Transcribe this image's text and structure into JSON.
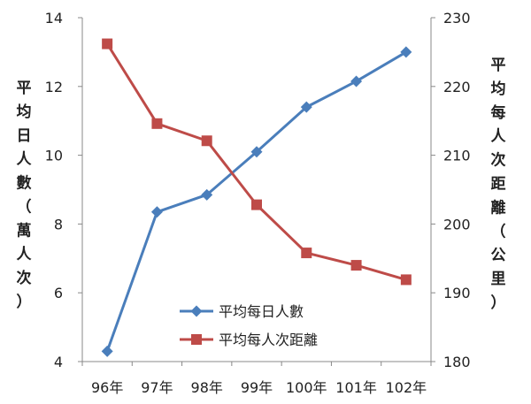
{
  "chart_data": {
    "type": "line",
    "categories": [
      "96年",
      "97年",
      "98年",
      "99年",
      "100年",
      "101年",
      "102年"
    ],
    "series": [
      {
        "name": "平均每日人數",
        "axis": "left",
        "color": "#4a7ebb",
        "marker": "diamond",
        "values": [
          4.3,
          8.35,
          8.85,
          10.1,
          11.4,
          12.15,
          13.0
        ]
      },
      {
        "name": "平均每人次距離",
        "axis": "right",
        "color": "#be4b48",
        "marker": "square",
        "values": [
          226.2,
          214.6,
          212.1,
          202.8,
          195.8,
          194.0,
          191.9
        ]
      }
    ],
    "y_left": {
      "label": "平均日人數（萬人次）",
      "ylim": [
        4,
        14
      ],
      "ticks": [
        "4",
        "6",
        "8",
        "10",
        "12",
        "14"
      ]
    },
    "y_right": {
      "label": "平均每人次距離（公里）",
      "ylim": [
        180,
        230
      ],
      "ticks": [
        "180",
        "190",
        "200",
        "210",
        "220",
        "230"
      ]
    },
    "legend_position": "center-bottom",
    "grid": false
  }
}
